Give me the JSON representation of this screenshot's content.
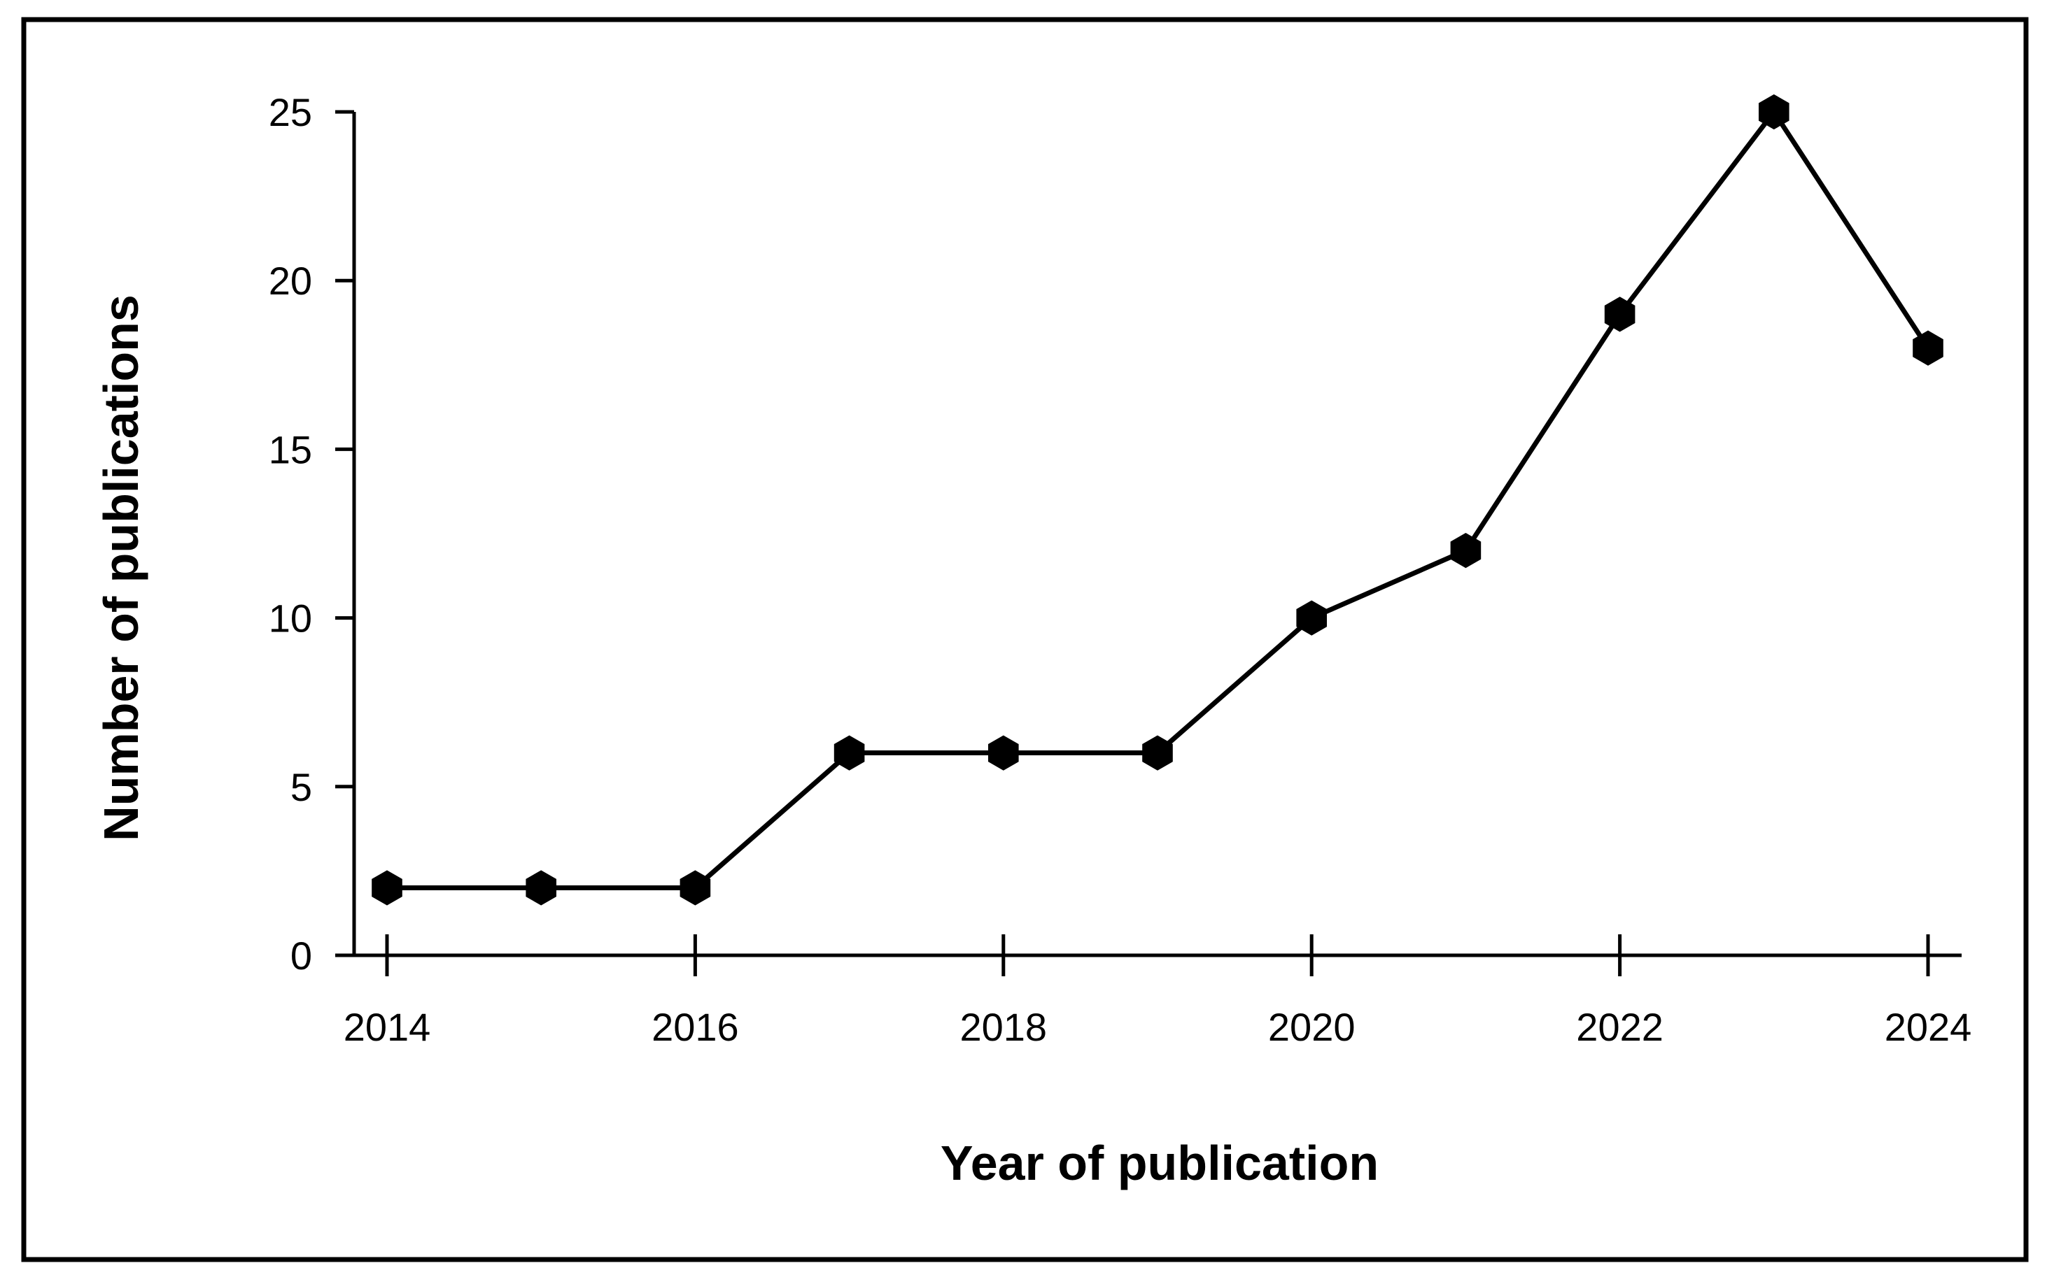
{
  "chart_data": {
    "type": "line",
    "title": "",
    "xlabel": "Year of publication",
    "ylabel": "Number of publications",
    "xlim": [
      2014,
      2024
    ],
    "ylim": [
      0,
      25
    ],
    "x_ticks": [
      2014,
      2016,
      2018,
      2020,
      2022,
      2024
    ],
    "y_ticks": [
      0,
      5,
      10,
      15,
      20,
      25
    ],
    "grid": false,
    "legend": "none",
    "marker": "hexagon",
    "colors": {
      "line": "#000000",
      "marker": "#000000",
      "axis": "#000000",
      "border": "#000000",
      "background": "#ffffff"
    },
    "series": [
      {
        "x": [
          2014,
          2015,
          2016,
          2017,
          2018,
          2019,
          2020,
          2021,
          2022,
          2023,
          2024
        ],
        "values": [
          2,
          2,
          2,
          6,
          6,
          6,
          10,
          12,
          19,
          25,
          18
        ]
      }
    ]
  }
}
